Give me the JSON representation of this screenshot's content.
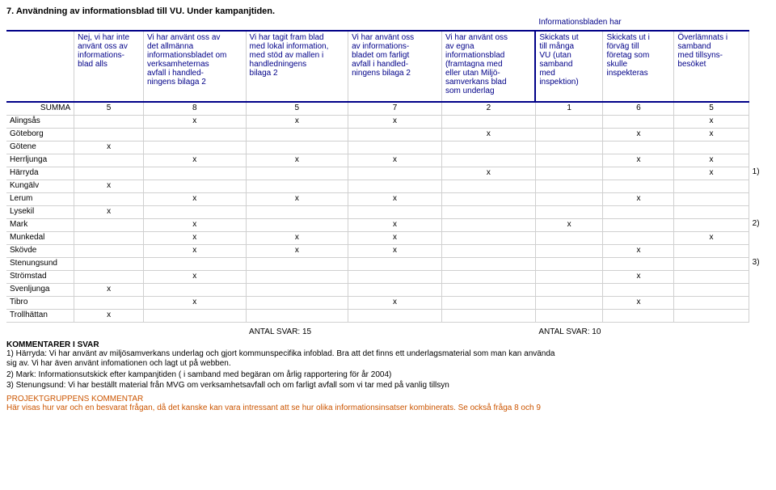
{
  "title": "7. Användning av informationsblad till VU. Under kampanjtiden.",
  "info_group_header": "Informationsbladen har",
  "headers": [
    "Nej, vi har inte\nanvänt oss av\ninformations-\nblad alls",
    "Vi har använt oss av\ndet allmänna\ninformationsbladet om\nverksamheternas\navfall i handled-\nningens bilaga 2",
    "Vi har tagit fram blad\nmed lokal information,\nmed stöd av mallen i\nhandledningens\nbilaga 2",
    "Vi har använt oss\nav informations-\nbladet om farligt\navfall i handled-\nningens bilaga 2",
    "Vi har använt oss\nav egna\ninformationsblad\n(framtagna med\neller utan Miljö-\nsamverkans blad\nsom underlag",
    "Skickats ut\ntill många\nVU (utan\nsamband\nmed\ninspektion)",
    "Skickats ut i\nförväg till\nföretag som\nskulle\ninspekteras",
    "Överlämnats i\nsamband\nmed tillsyns-\nbesöket"
  ],
  "summa_label": "SUMMA",
  "summa": [
    "5",
    "8",
    "5",
    "7",
    "2",
    "1",
    "6",
    "5"
  ],
  "rows": [
    {
      "label": "Alingsås",
      "cells": [
        "",
        "x",
        "x",
        "x",
        "",
        "",
        "",
        "x"
      ],
      "side": ""
    },
    {
      "label": "Göteborg",
      "cells": [
        "",
        "",
        "",
        "",
        "x",
        "",
        "x",
        "x"
      ],
      "side": ""
    },
    {
      "label": "Götene",
      "cells": [
        "x",
        "",
        "",
        "",
        "",
        "",
        "",
        ""
      ],
      "side": ""
    },
    {
      "label": "Herrljunga",
      "cells": [
        "",
        "x",
        "x",
        "x",
        "",
        "",
        "x",
        "x"
      ],
      "side": ""
    },
    {
      "label": "Härryda",
      "cells": [
        "",
        "",
        "",
        "",
        "x",
        "",
        "",
        "x"
      ],
      "side": "1)"
    },
    {
      "label": "Kungälv",
      "cells": [
        "x",
        "",
        "",
        "",
        "",
        "",
        "",
        ""
      ],
      "side": ""
    },
    {
      "label": "Lerum",
      "cells": [
        "",
        "x",
        "x",
        "x",
        "",
        "",
        "x",
        ""
      ],
      "side": ""
    },
    {
      "label": "Lysekil",
      "cells": [
        "x",
        "",
        "",
        "",
        "",
        "",
        "",
        ""
      ],
      "side": ""
    },
    {
      "label": "Mark",
      "cells": [
        "",
        "x",
        "",
        "x",
        "",
        "x",
        "",
        ""
      ],
      "side": "2)"
    },
    {
      "label": "Munkedal",
      "cells": [
        "",
        "x",
        "x",
        "x",
        "",
        "",
        "",
        "x"
      ],
      "side": ""
    },
    {
      "label": "Skövde",
      "cells": [
        "",
        "x",
        "x",
        "x",
        "",
        "",
        "x",
        ""
      ],
      "side": ""
    },
    {
      "label": "Stenungsund",
      "cells": [
        "",
        "",
        "",
        "",
        "",
        "",
        "",
        ""
      ],
      "side": "3)"
    },
    {
      "label": "Strömstad",
      "cells": [
        "",
        "x",
        "",
        "",
        "",
        "",
        "x",
        ""
      ],
      "side": ""
    },
    {
      "label": "Svenljunga",
      "cells": [
        "x",
        "",
        "",
        "",
        "",
        "",
        "",
        ""
      ],
      "side": ""
    },
    {
      "label": "Tibro",
      "cells": [
        "",
        "x",
        "",
        "x",
        "",
        "",
        "x",
        ""
      ],
      "side": ""
    },
    {
      "label": "Trollhättan",
      "cells": [
        "x",
        "",
        "",
        "",
        "",
        "",
        "",
        ""
      ],
      "side": ""
    }
  ],
  "antal_svar_left": "ANTAL SVAR:  15",
  "antal_svar_right": "ANTAL SVAR:  10",
  "comments_header": "KOMMENTARER I SVAR",
  "comments": [
    "1) Härryda: Vi har använt av miljösamverkans underlag och gjort kommunspecifika infoblad. Bra att det finns ett underlagsmaterial som man kan använda\nsig av. Vi har även använt infomationen och lagt ut på webben.",
    "2) Mark: Informationsutskick efter kampanjtiden ( i samband med begäran om årlig rapportering för år 2004)",
    "3) Stenungsund: Vi har beställt material från MVG om verksamhetsavfall och om farligt avfall som vi tar med på vanlig tillsyn"
  ],
  "project_comment_header": "PROJEKTGRUPPENS KOMMENTAR",
  "project_comment_body": "Här visas hur var och en besvarat frågan, då det kanske kan vara intressant att se hur olika informationsinsatser kombinerats.  Se också fråga 8 och 9"
}
